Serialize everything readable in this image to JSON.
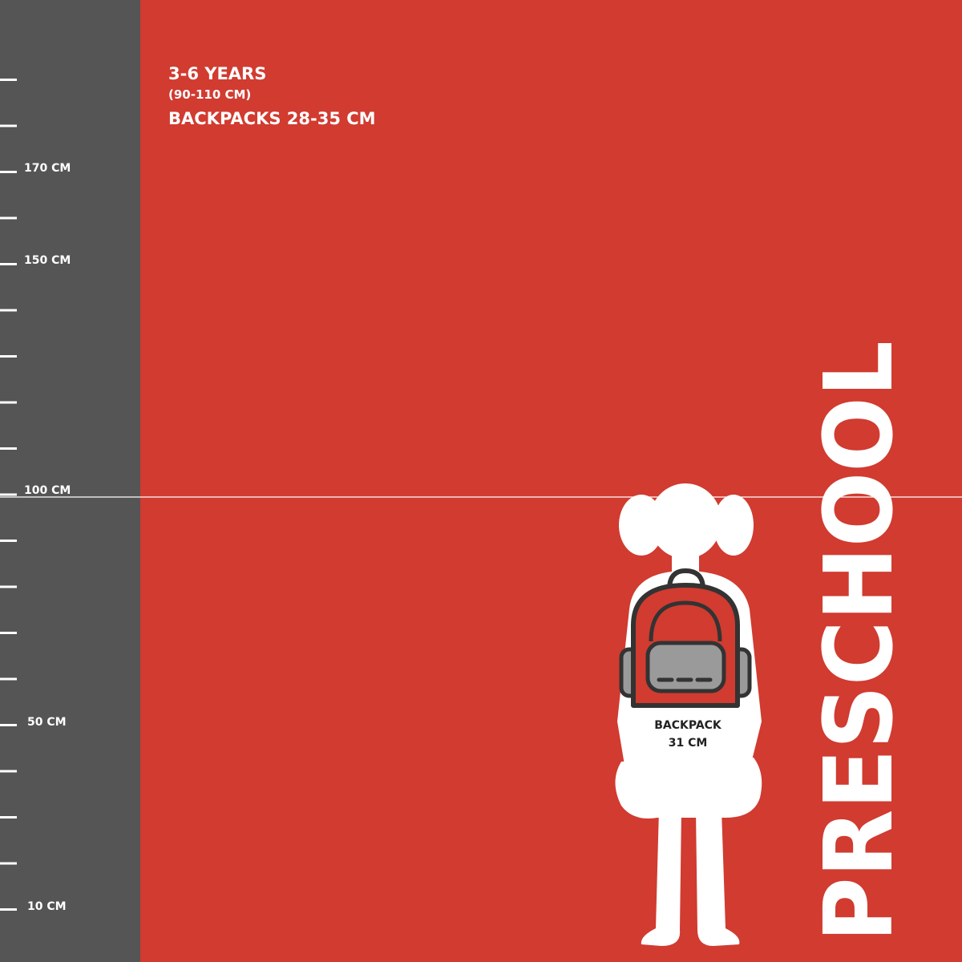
{
  "header": {
    "age": "3-6 YEARS",
    "height": "(90-110 CM)",
    "backpacks": "BACKPACKS 28-35 CM"
  },
  "ruler": {
    "labels": [
      "170 CM",
      "150 CM",
      "100 CM",
      "50 CM",
      "10 CM"
    ]
  },
  "figure": {
    "label_line1": "BACKPACK",
    "label_line2": "31 CM"
  },
  "category": "PRESCHOOL"
}
